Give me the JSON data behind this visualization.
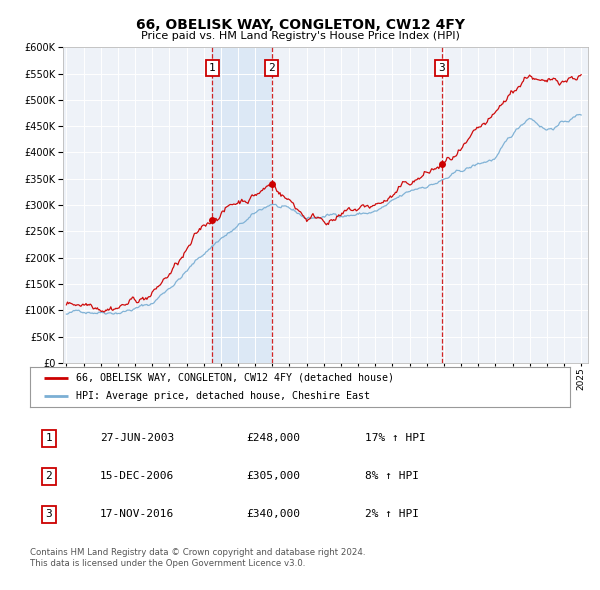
{
  "title": "66, OBELISK WAY, CONGLETON, CW12 4FY",
  "subtitle": "Price paid vs. HM Land Registry's House Price Index (HPI)",
  "legend_line1": "66, OBELISK WAY, CONGLETON, CW12 4FY (detached house)",
  "legend_line2": "HPI: Average price, detached house, Cheshire East",
  "red_color": "#cc0000",
  "blue_color": "#7bafd4",
  "bg_color": "#eef2f8",
  "shade_color": "#dce8f5",
  "transactions": [
    {
      "label": "1",
      "date_num": 2003.49,
      "price": 248000,
      "pct": "17%",
      "date_str": "27-JUN-2003"
    },
    {
      "label": "2",
      "date_num": 2006.96,
      "price": 305000,
      "pct": "8%",
      "date_str": "15-DEC-2006"
    },
    {
      "label": "3",
      "date_num": 2016.88,
      "price": 340000,
      "pct": "2%",
      "date_str": "17-NOV-2016"
    }
  ],
  "footer_line1": "Contains HM Land Registry data © Crown copyright and database right 2024.",
  "footer_line2": "This data is licensed under the Open Government Licence v3.0.",
  "ylim": [
    0,
    600000
  ],
  "yticks": [
    0,
    50000,
    100000,
    150000,
    200000,
    250000,
    300000,
    350000,
    400000,
    450000,
    500000,
    550000,
    600000
  ],
  "xlim_start": 1994.8,
  "xlim_end": 2025.4,
  "xticks": [
    1995,
    1996,
    1997,
    1998,
    1999,
    2000,
    2001,
    2002,
    2003,
    2004,
    2005,
    2006,
    2007,
    2008,
    2009,
    2010,
    2011,
    2012,
    2013,
    2014,
    2015,
    2016,
    2017,
    2018,
    2019,
    2020,
    2021,
    2022,
    2023,
    2024,
    2025
  ]
}
